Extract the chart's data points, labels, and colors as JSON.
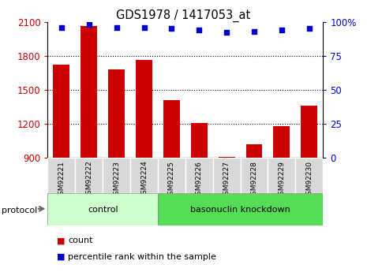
{
  "title": "GDS1978 / 1417053_at",
  "samples": [
    "GSM92221",
    "GSM92222",
    "GSM92223",
    "GSM92224",
    "GSM92225",
    "GSM92226",
    "GSM92227",
    "GSM92228",
    "GSM92229",
    "GSM92230"
  ],
  "counts": [
    1720,
    2060,
    1680,
    1760,
    1410,
    1210,
    910,
    1020,
    1180,
    1360
  ],
  "percentile_ranks": [
    96,
    98,
    96,
    96,
    95,
    94,
    92,
    93,
    94,
    95
  ],
  "ylim_left": [
    900,
    2100
  ],
  "ylim_right": [
    0,
    100
  ],
  "yticks_left": [
    900,
    1200,
    1500,
    1800,
    2100
  ],
  "yticks_right": [
    0,
    25,
    50,
    75,
    100
  ],
  "bar_color": "#cc0000",
  "dot_color": "#0000cc",
  "n_control": 4,
  "control_label": "control",
  "knockdown_label": "basonuclin knockdown",
  "protocol_label": "protocol",
  "legend_count": "count",
  "legend_percentile": "percentile rank within the sample",
  "control_color": "#ccffcc",
  "knockdown_color": "#55dd55",
  "tick_bg_color": "#d8d8d8",
  "left_tick_color": "#cc0000",
  "right_tick_color": "#0000cc"
}
